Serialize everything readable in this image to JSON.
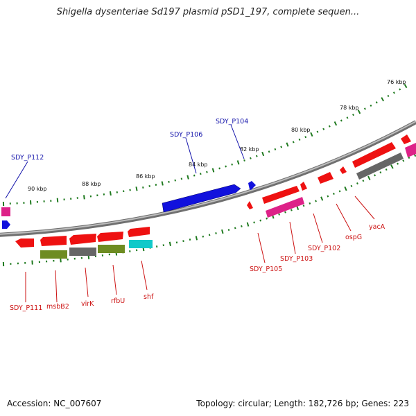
{
  "title": "Shigella dysenteriae Sd197 plasmid pSD1_197, complete sequen...",
  "footer": {
    "accession": "Accession: NC_007607",
    "summary": "Topology: circular; Length: 182,726 bp; Genes: 223"
  },
  "colors": {
    "backbone": "#8c8c8c",
    "tick": "#1f7a1f",
    "red_gene": "#ee1111",
    "magenta_gene": "#dd2288",
    "blue_gene": "#1111dd",
    "olive_gene": "#6e8c22",
    "gray_gene": "#666666",
    "cyan_gene": "#11c9c9",
    "label_forward": "#1111aa",
    "label_reverse": "#cc1111"
  },
  "scale_labels": [
    "76 kbp",
    "78 kbp",
    "80 kbp",
    "82 kbp",
    "84 kbp",
    "86 kbp",
    "88 kbp",
    "90 kbp"
  ],
  "forward_labels": [
    "SDY_P104",
    "SDY_P106",
    "SDY_P112"
  ],
  "reverse_labels": [
    "SDY_P111",
    "msbB2",
    "virK",
    "rfbU",
    "shf",
    "SDY_P105",
    "SDY_P103",
    "SDY_P102",
    "ospG",
    "yacA"
  ]
}
